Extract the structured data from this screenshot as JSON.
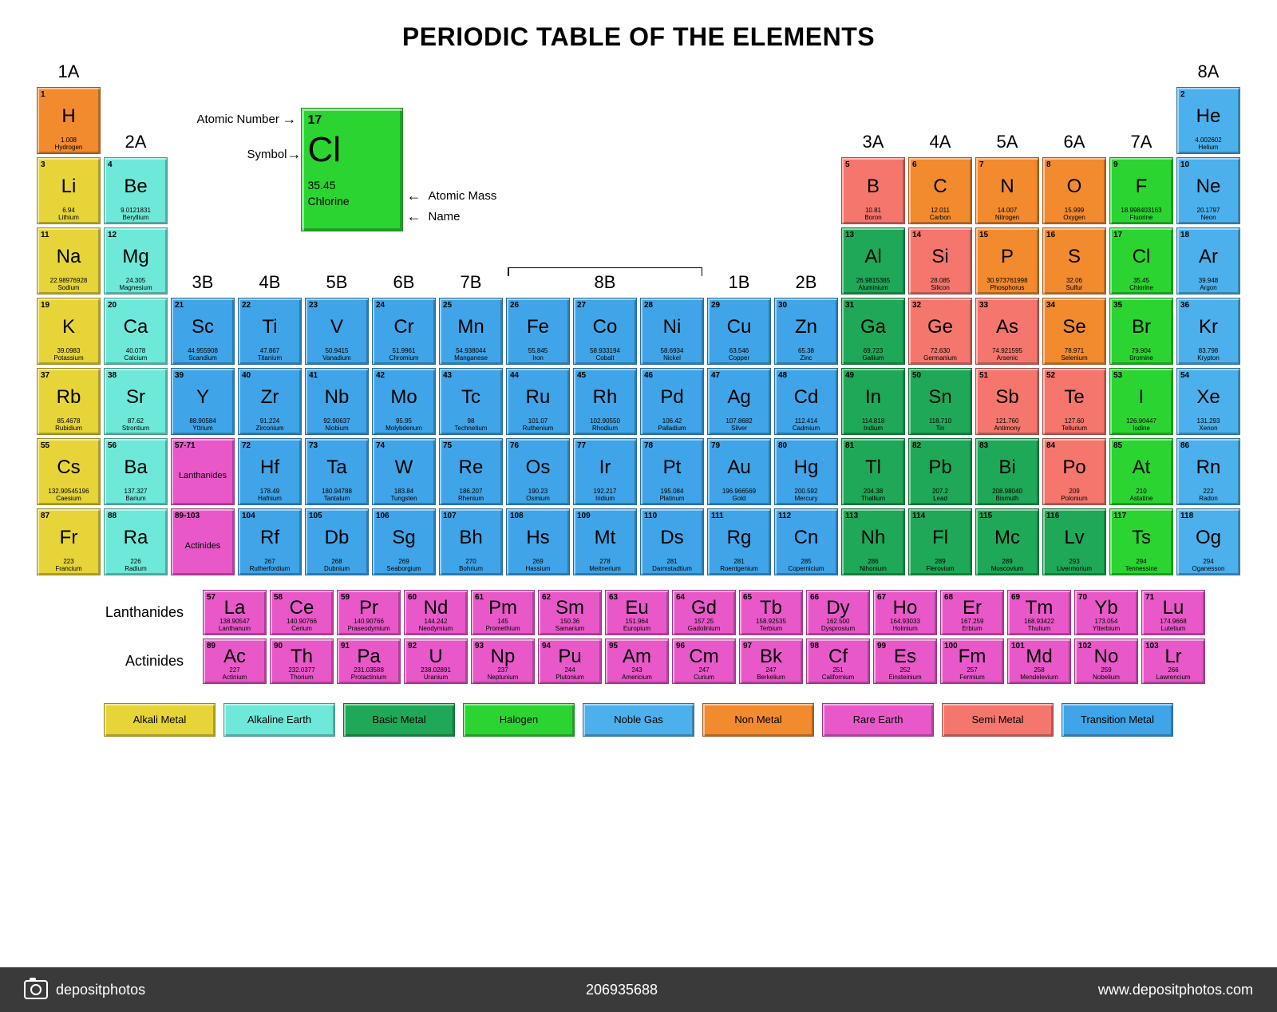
{
  "title": "PERIODIC TABLE OF THE ELEMENTS",
  "colors": {
    "alkali": "#e6d438",
    "alkaline": "#6ee8d8",
    "basic": "#1fa857",
    "halogen": "#2bd430",
    "noble": "#4bb0ec",
    "nonmetal": "#f28a2e",
    "rare": "#e858c9",
    "semi": "#f4766d",
    "transition": "#3fa4e8"
  },
  "key": {
    "num": "17",
    "sym": "Cl",
    "mass": "35.45",
    "name": "Chlorine",
    "labels": {
      "num": "Atomic Number",
      "sym": "Symbol",
      "mass": "Atomic Mass",
      "name": "Name"
    },
    "color": "#2bd430"
  },
  "groups": [
    "1A",
    "2A",
    "3B",
    "4B",
    "5B",
    "6B",
    "7B",
    "8B",
    "8B",
    "8B",
    "1B",
    "2B",
    "3A",
    "4A",
    "5A",
    "6A",
    "7A",
    "8A"
  ],
  "f_labels": {
    "lan": "Lanthanides",
    "act": "Actinides"
  },
  "series_labels": {
    "lan": "Lanthanides",
    "act": "Actinides",
    "lan_range": "57-71",
    "act_range": "89-103"
  },
  "legend": [
    {
      "label": "Alkali Metal",
      "c": "alkali"
    },
    {
      "label": "Alkaline Earth",
      "c": "alkaline"
    },
    {
      "label": "Basic Metal",
      "c": "basic"
    },
    {
      "label": "Halogen",
      "c": "halogen"
    },
    {
      "label": "Noble Gas",
      "c": "noble"
    },
    {
      "label": "Non Metal",
      "c": "nonmetal"
    },
    {
      "label": "Rare Earth",
      "c": "rare"
    },
    {
      "label": "Semi Metal",
      "c": "semi"
    },
    {
      "label": "Transition Metal",
      "c": "transition"
    }
  ],
  "elements": [
    {
      "n": 1,
      "s": "H",
      "m": "1.008",
      "nm": "Hydrogen",
      "c": "nonmetal",
      "r": 1,
      "g": 1
    },
    {
      "n": 2,
      "s": "He",
      "m": "4.002602",
      "nm": "Helium",
      "c": "noble",
      "r": 1,
      "g": 18
    },
    {
      "n": 3,
      "s": "Li",
      "m": "6.94",
      "nm": "Lithium",
      "c": "alkali",
      "r": 2,
      "g": 1
    },
    {
      "n": 4,
      "s": "Be",
      "m": "9.0121831",
      "nm": "Beryllium",
      "c": "alkaline",
      "r": 2,
      "g": 2
    },
    {
      "n": 5,
      "s": "B",
      "m": "10.81",
      "nm": "Boron",
      "c": "semi",
      "r": 2,
      "g": 13
    },
    {
      "n": 6,
      "s": "C",
      "m": "12.011",
      "nm": "Carbon",
      "c": "nonmetal",
      "r": 2,
      "g": 14
    },
    {
      "n": 7,
      "s": "N",
      "m": "14.007",
      "nm": "Nitrogen",
      "c": "nonmetal",
      "r": 2,
      "g": 15
    },
    {
      "n": 8,
      "s": "O",
      "m": "15.999",
      "nm": "Oxygen",
      "c": "nonmetal",
      "r": 2,
      "g": 16
    },
    {
      "n": 9,
      "s": "F",
      "m": "18.998403163",
      "nm": "Fluorine",
      "c": "halogen",
      "r": 2,
      "g": 17
    },
    {
      "n": 10,
      "s": "Ne",
      "m": "20.1797",
      "nm": "Neon",
      "c": "noble",
      "r": 2,
      "g": 18
    },
    {
      "n": 11,
      "s": "Na",
      "m": "22.98976928",
      "nm": "Sodium",
      "c": "alkali",
      "r": 3,
      "g": 1
    },
    {
      "n": 12,
      "s": "Mg",
      "m": "24.305",
      "nm": "Magnesium",
      "c": "alkaline",
      "r": 3,
      "g": 2
    },
    {
      "n": 13,
      "s": "Al",
      "m": "26.9815385",
      "nm": "Aluminium",
      "c": "basic",
      "r": 3,
      "g": 13
    },
    {
      "n": 14,
      "s": "Si",
      "m": "28.085",
      "nm": "Silicon",
      "c": "semi",
      "r": 3,
      "g": 14
    },
    {
      "n": 15,
      "s": "P",
      "m": "30.973761998",
      "nm": "Phosphorus",
      "c": "nonmetal",
      "r": 3,
      "g": 15
    },
    {
      "n": 16,
      "s": "S",
      "m": "32.06",
      "nm": "Sulfur",
      "c": "nonmetal",
      "r": 3,
      "g": 16
    },
    {
      "n": 17,
      "s": "Cl",
      "m": "35.45",
      "nm": "Chlorine",
      "c": "halogen",
      "r": 3,
      "g": 17
    },
    {
      "n": 18,
      "s": "Ar",
      "m": "39.948",
      "nm": "Argon",
      "c": "noble",
      "r": 3,
      "g": 18
    },
    {
      "n": 19,
      "s": "K",
      "m": "39.0983",
      "nm": "Potassium",
      "c": "alkali",
      "r": 4,
      "g": 1
    },
    {
      "n": 20,
      "s": "Ca",
      "m": "40.078",
      "nm": "Calcium",
      "c": "alkaline",
      "r": 4,
      "g": 2
    },
    {
      "n": 21,
      "s": "Sc",
      "m": "44.955908",
      "nm": "Scandium",
      "c": "transition",
      "r": 4,
      "g": 3
    },
    {
      "n": 22,
      "s": "Ti",
      "m": "47.867",
      "nm": "Titanium",
      "c": "transition",
      "r": 4,
      "g": 4
    },
    {
      "n": 23,
      "s": "V",
      "m": "50.9415",
      "nm": "Vanadium",
      "c": "transition",
      "r": 4,
      "g": 5
    },
    {
      "n": 24,
      "s": "Cr",
      "m": "51.9961",
      "nm": "Chromium",
      "c": "transition",
      "r": 4,
      "g": 6
    },
    {
      "n": 25,
      "s": "Mn",
      "m": "54.938044",
      "nm": "Manganese",
      "c": "transition",
      "r": 4,
      "g": 7
    },
    {
      "n": 26,
      "s": "Fe",
      "m": "55.845",
      "nm": "Iron",
      "c": "transition",
      "r": 4,
      "g": 8
    },
    {
      "n": 27,
      "s": "Co",
      "m": "58.933194",
      "nm": "Cobalt",
      "c": "transition",
      "r": 4,
      "g": 9
    },
    {
      "n": 28,
      "s": "Ni",
      "m": "58.6934",
      "nm": "Nickel",
      "c": "transition",
      "r": 4,
      "g": 10
    },
    {
      "n": 29,
      "s": "Cu",
      "m": "63.546",
      "nm": "Copper",
      "c": "transition",
      "r": 4,
      "g": 11
    },
    {
      "n": 30,
      "s": "Zn",
      "m": "65.38",
      "nm": "Zinc",
      "c": "transition",
      "r": 4,
      "g": 12
    },
    {
      "n": 31,
      "s": "Ga",
      "m": "69.723",
      "nm": "Gallium",
      "c": "basic",
      "r": 4,
      "g": 13
    },
    {
      "n": 32,
      "s": "Ge",
      "m": "72.630",
      "nm": "Germanium",
      "c": "semi",
      "r": 4,
      "g": 14
    },
    {
      "n": 33,
      "s": "As",
      "m": "74.921595",
      "nm": "Arsenic",
      "c": "semi",
      "r": 4,
      "g": 15
    },
    {
      "n": 34,
      "s": "Se",
      "m": "78.971",
      "nm": "Selenium",
      "c": "nonmetal",
      "r": 4,
      "g": 16
    },
    {
      "n": 35,
      "s": "Br",
      "m": "79.904",
      "nm": "Bromine",
      "c": "halogen",
      "r": 4,
      "g": 17
    },
    {
      "n": 36,
      "s": "Kr",
      "m": "83.798",
      "nm": "Krypton",
      "c": "noble",
      "r": 4,
      "g": 18
    },
    {
      "n": 37,
      "s": "Rb",
      "m": "85.4678",
      "nm": "Rubidium",
      "c": "alkali",
      "r": 5,
      "g": 1
    },
    {
      "n": 38,
      "s": "Sr",
      "m": "87.62",
      "nm": "Strontium",
      "c": "alkaline",
      "r": 5,
      "g": 2
    },
    {
      "n": 39,
      "s": "Y",
      "m": "88.90584",
      "nm": "Yttrium",
      "c": "transition",
      "r": 5,
      "g": 3
    },
    {
      "n": 40,
      "s": "Zr",
      "m": "91.224",
      "nm": "Zirconium",
      "c": "transition",
      "r": 5,
      "g": 4
    },
    {
      "n": 41,
      "s": "Nb",
      "m": "92.90637",
      "nm": "Niobium",
      "c": "transition",
      "r": 5,
      "g": 5
    },
    {
      "n": 42,
      "s": "Mo",
      "m": "95.95",
      "nm": "Molybdenum",
      "c": "transition",
      "r": 5,
      "g": 6
    },
    {
      "n": 43,
      "s": "Tc",
      "m": "98",
      "nm": "Technetium",
      "c": "transition",
      "r": 5,
      "g": 7
    },
    {
      "n": 44,
      "s": "Ru",
      "m": "101.07",
      "nm": "Ruthenium",
      "c": "transition",
      "r": 5,
      "g": 8
    },
    {
      "n": 45,
      "s": "Rh",
      "m": "102.90550",
      "nm": "Rhodium",
      "c": "transition",
      "r": 5,
      "g": 9
    },
    {
      "n": 46,
      "s": "Pd",
      "m": "106.42",
      "nm": "Palladium",
      "c": "transition",
      "r": 5,
      "g": 10
    },
    {
      "n": 47,
      "s": "Ag",
      "m": "107.8682",
      "nm": "Silver",
      "c": "transition",
      "r": 5,
      "g": 11
    },
    {
      "n": 48,
      "s": "Cd",
      "m": "112.414",
      "nm": "Cadmium",
      "c": "transition",
      "r": 5,
      "g": 12
    },
    {
      "n": 49,
      "s": "In",
      "m": "114.818",
      "nm": "Indium",
      "c": "basic",
      "r": 5,
      "g": 13
    },
    {
      "n": 50,
      "s": "Sn",
      "m": "118.710",
      "nm": "Tin",
      "c": "basic",
      "r": 5,
      "g": 14
    },
    {
      "n": 51,
      "s": "Sb",
      "m": "121.760",
      "nm": "Antimony",
      "c": "semi",
      "r": 5,
      "g": 15
    },
    {
      "n": 52,
      "s": "Te",
      "m": "127.60",
      "nm": "Tellurium",
      "c": "semi",
      "r": 5,
      "g": 16
    },
    {
      "n": 53,
      "s": "I",
      "m": "126.90447",
      "nm": "Iodine",
      "c": "halogen",
      "r": 5,
      "g": 17
    },
    {
      "n": 54,
      "s": "Xe",
      "m": "131.293",
      "nm": "Xenon",
      "c": "noble",
      "r": 5,
      "g": 18
    },
    {
      "n": 55,
      "s": "Cs",
      "m": "132.90545196",
      "nm": "Caesium",
      "c": "alkali",
      "r": 6,
      "g": 1
    },
    {
      "n": 56,
      "s": "Ba",
      "m": "137.327",
      "nm": "Barium",
      "c": "alkaline",
      "r": 6,
      "g": 2
    },
    {
      "n": 72,
      "s": "Hf",
      "m": "178.49",
      "nm": "Hafnium",
      "c": "transition",
      "r": 6,
      "g": 4
    },
    {
      "n": 73,
      "s": "Ta",
      "m": "180.94788",
      "nm": "Tantalum",
      "c": "transition",
      "r": 6,
      "g": 5
    },
    {
      "n": 74,
      "s": "W",
      "m": "183.84",
      "nm": "Tungsten",
      "c": "transition",
      "r": 6,
      "g": 6
    },
    {
      "n": 75,
      "s": "Re",
      "m": "186.207",
      "nm": "Rhenium",
      "c": "transition",
      "r": 6,
      "g": 7
    },
    {
      "n": 76,
      "s": "Os",
      "m": "190.23",
      "nm": "Osmium",
      "c": "transition",
      "r": 6,
      "g": 8
    },
    {
      "n": 77,
      "s": "Ir",
      "m": "192.217",
      "nm": "Iridium",
      "c": "transition",
      "r": 6,
      "g": 9
    },
    {
      "n": 78,
      "s": "Pt",
      "m": "195.084",
      "nm": "Platinum",
      "c": "transition",
      "r": 6,
      "g": 10
    },
    {
      "n": 79,
      "s": "Au",
      "m": "196.966569",
      "nm": "Gold",
      "c": "transition",
      "r": 6,
      "g": 11
    },
    {
      "n": 80,
      "s": "Hg",
      "m": "200.592",
      "nm": "Mercury",
      "c": "transition",
      "r": 6,
      "g": 12
    },
    {
      "n": 81,
      "s": "Tl",
      "m": "204.38",
      "nm": "Thallium",
      "c": "basic",
      "r": 6,
      "g": 13
    },
    {
      "n": 82,
      "s": "Pb",
      "m": "207.2",
      "nm": "Lead",
      "c": "basic",
      "r": 6,
      "g": 14
    },
    {
      "n": 83,
      "s": "Bi",
      "m": "208.98040",
      "nm": "Bismuth",
      "c": "basic",
      "r": 6,
      "g": 15
    },
    {
      "n": 84,
      "s": "Po",
      "m": "209",
      "nm": "Polonium",
      "c": "semi",
      "r": 6,
      "g": 16
    },
    {
      "n": 85,
      "s": "At",
      "m": "210",
      "nm": "Astatine",
      "c": "halogen",
      "r": 6,
      "g": 17
    },
    {
      "n": 86,
      "s": "Rn",
      "m": "222",
      "nm": "Radon",
      "c": "noble",
      "r": 6,
      "g": 18
    },
    {
      "n": 87,
      "s": "Fr",
      "m": "223",
      "nm": "Francium",
      "c": "alkali",
      "r": 7,
      "g": 1
    },
    {
      "n": 88,
      "s": "Ra",
      "m": "226",
      "nm": "Radium",
      "c": "alkaline",
      "r": 7,
      "g": 2
    },
    {
      "n": 104,
      "s": "Rf",
      "m": "267",
      "nm": "Rutherfordium",
      "c": "transition",
      "r": 7,
      "g": 4
    },
    {
      "n": 105,
      "s": "Db",
      "m": "268",
      "nm": "Dubnium",
      "c": "transition",
      "r": 7,
      "g": 5
    },
    {
      "n": 106,
      "s": "Sg",
      "m": "269",
      "nm": "Seaborgium",
      "c": "transition",
      "r": 7,
      "g": 6
    },
    {
      "n": 107,
      "s": "Bh",
      "m": "270",
      "nm": "Bohrium",
      "c": "transition",
      "r": 7,
      "g": 7
    },
    {
      "n": 108,
      "s": "Hs",
      "m": "269",
      "nm": "Hassium",
      "c": "transition",
      "r": 7,
      "g": 8
    },
    {
      "n": 109,
      "s": "Mt",
      "m": "278",
      "nm": "Meitnerium",
      "c": "transition",
      "r": 7,
      "g": 9
    },
    {
      "n": 110,
      "s": "Ds",
      "m": "281",
      "nm": "Darmstadtium",
      "c": "transition",
      "r": 7,
      "g": 10
    },
    {
      "n": 111,
      "s": "Rg",
      "m": "281",
      "nm": "Roentgenium",
      "c": "transition",
      "r": 7,
      "g": 11
    },
    {
      "n": 112,
      "s": "Cn",
      "m": "285",
      "nm": "Copernicium",
      "c": "transition",
      "r": 7,
      "g": 12
    },
    {
      "n": 113,
      "s": "Nh",
      "m": "286",
      "nm": "Nihonium",
      "c": "basic",
      "r": 7,
      "g": 13
    },
    {
      "n": 114,
      "s": "Fl",
      "m": "289",
      "nm": "Flerovium",
      "c": "basic",
      "r": 7,
      "g": 14
    },
    {
      "n": 115,
      "s": "Mc",
      "m": "289",
      "nm": "Moscovium",
      "c": "basic",
      "r": 7,
      "g": 15
    },
    {
      "n": 116,
      "s": "Lv",
      "m": "293",
      "nm": "Livermorium",
      "c": "basic",
      "r": 7,
      "g": 16
    },
    {
      "n": 117,
      "s": "Ts",
      "m": "294",
      "nm": "Tennessine",
      "c": "halogen",
      "r": 7,
      "g": 17
    },
    {
      "n": 118,
      "s": "Og",
      "m": "294",
      "nm": "Oganesson",
      "c": "noble",
      "r": 7,
      "g": 18
    }
  ],
  "lanthanides": [
    {
      "n": 57,
      "s": "La",
      "m": "138.90547",
      "nm": "Lanthanum"
    },
    {
      "n": 58,
      "s": "Ce",
      "m": "140.90766",
      "nm": "Cerium"
    },
    {
      "n": 59,
      "s": "Pr",
      "m": "140.90766",
      "nm": "Praseodymium"
    },
    {
      "n": 60,
      "s": "Nd",
      "m": "144.242",
      "nm": "Neodymium"
    },
    {
      "n": 61,
      "s": "Pm",
      "m": "145",
      "nm": "Promethium"
    },
    {
      "n": 62,
      "s": "Sm",
      "m": "150.36",
      "nm": "Samarium"
    },
    {
      "n": 63,
      "s": "Eu",
      "m": "151.964",
      "nm": "Europium"
    },
    {
      "n": 64,
      "s": "Gd",
      "m": "157.25",
      "nm": "Gadolinium"
    },
    {
      "n": 65,
      "s": "Tb",
      "m": "158.92535",
      "nm": "Terbium"
    },
    {
      "n": 66,
      "s": "Dy",
      "m": "162.500",
      "nm": "Dysprosium"
    },
    {
      "n": 67,
      "s": "Ho",
      "m": "164.93033",
      "nm": "Holmium"
    },
    {
      "n": 68,
      "s": "Er",
      "m": "167.259",
      "nm": "Erbium"
    },
    {
      "n": 69,
      "s": "Tm",
      "m": "168.93422",
      "nm": "Thulium"
    },
    {
      "n": 70,
      "s": "Yb",
      "m": "173.054",
      "nm": "Ytterbium"
    },
    {
      "n": 71,
      "s": "Lu",
      "m": "174.9668",
      "nm": "Lutetium"
    }
  ],
  "actinides": [
    {
      "n": 89,
      "s": "Ac",
      "m": "227",
      "nm": "Actinium"
    },
    {
      "n": 90,
      "s": "Th",
      "m": "232.0377",
      "nm": "Thorium"
    },
    {
      "n": 91,
      "s": "Pa",
      "m": "231.03588",
      "nm": "Protactinium"
    },
    {
      "n": 92,
      "s": "U",
      "m": "238.02891",
      "nm": "Uranium"
    },
    {
      "n": 93,
      "s": "Np",
      "m": "237",
      "nm": "Neptunium"
    },
    {
      "n": 94,
      "s": "Pu",
      "m": "244",
      "nm": "Plutonium"
    },
    {
      "n": 95,
      "s": "Am",
      "m": "243",
      "nm": "Americium"
    },
    {
      "n": 96,
      "s": "Cm",
      "m": "247",
      "nm": "Curium"
    },
    {
      "n": 97,
      "s": "Bk",
      "m": "247",
      "nm": "Berkelium"
    },
    {
      "n": 98,
      "s": "Cf",
      "m": "251",
      "nm": "Californium"
    },
    {
      "n": 99,
      "s": "Es",
      "m": "252",
      "nm": "Einsteinium"
    },
    {
      "n": 100,
      "s": "Fm",
      "m": "257",
      "nm": "Fermium"
    },
    {
      "n": 101,
      "s": "Md",
      "m": "258",
      "nm": "Mendelevium"
    },
    {
      "n": 102,
      "s": "No",
      "m": "259",
      "nm": "Nobelium"
    },
    {
      "n": 103,
      "s": "Lr",
      "m": "266",
      "nm": "Lawrencium"
    }
  ],
  "footer": {
    "brand": "depositphotos",
    "id": "206935688",
    "url": "www.depositphotos.com"
  }
}
